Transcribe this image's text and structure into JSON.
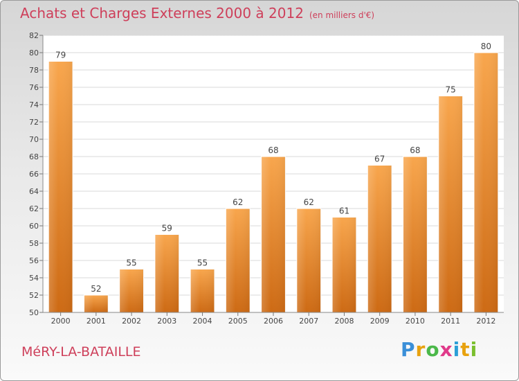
{
  "header": {
    "title": "Achats et Charges Externes 2000 à 2012",
    "subtitle": "(en milliers d'€)"
  },
  "footer": {
    "commune": "MéRY-LA-BATAILLE",
    "brand": "Proxiti"
  },
  "colors": {
    "bar_top": "#f8a64d",
    "bar_bottom": "#cd6a14",
    "title": "#ce3f5a"
  },
  "chart_data": {
    "type": "bar",
    "title": "Achats et Charges Externes 2000 à 2012",
    "subtitle": "(en milliers d'€)",
    "categories": [
      "2000",
      "2001",
      "2002",
      "2003",
      "2004",
      "2005",
      "2006",
      "2007",
      "2008",
      "2009",
      "2010",
      "2011",
      "2012"
    ],
    "values": [
      79,
      52,
      55,
      59,
      55,
      62,
      68,
      62,
      61,
      67,
      68,
      75,
      80
    ],
    "data_labels": [
      "79",
      "52",
      "55",
      "59",
      "55",
      "62",
      "68",
      "62",
      "61",
      "67",
      "68",
      "75",
      "80"
    ],
    "ylim": [
      50,
      82
    ],
    "yticks": [
      "50",
      "52",
      "54",
      "56",
      "58",
      "60",
      "62",
      "64",
      "66",
      "68",
      "70",
      "72",
      "74",
      "76",
      "78",
      "80",
      "82"
    ],
    "grid": true,
    "xlabel": "",
    "ylabel": ""
  }
}
